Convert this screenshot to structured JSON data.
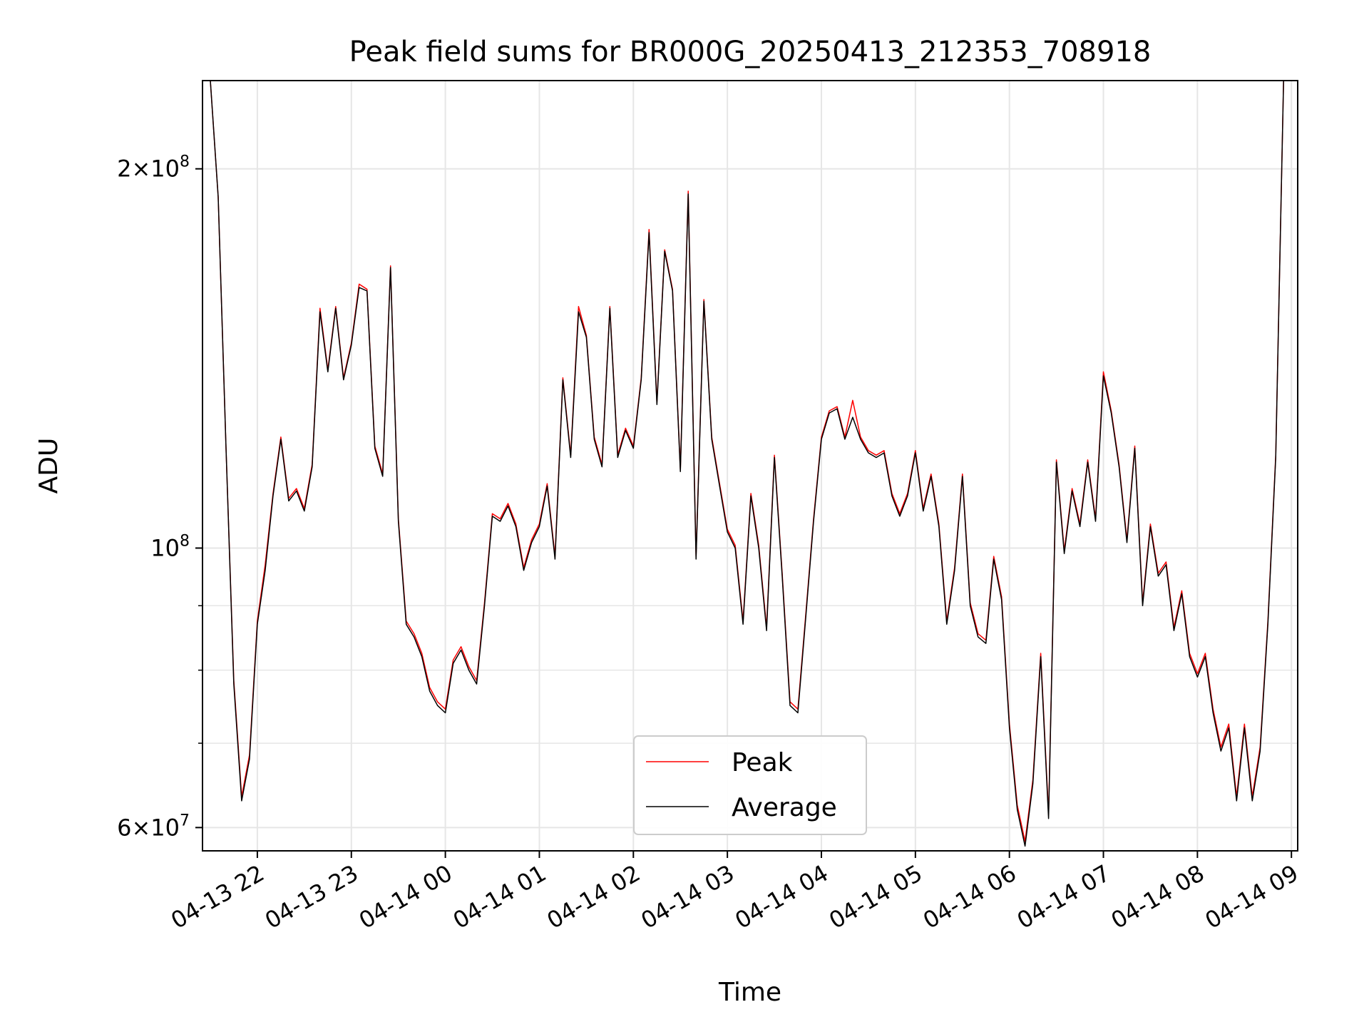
{
  "chart_data": {
    "type": "line",
    "title": "Peak field sums for BR000G_20250413_212353_708918",
    "xlabel": "Time",
    "ylabel": "ADU",
    "yscale": "log",
    "grid": true,
    "legend_placement": "lower center",
    "xlim": [
      "2025-04-13 21:25",
      "2025-04-14 09:04"
    ],
    "ylim": [
      57500000,
      235000000
    ],
    "x_ticks": [
      "04-13 22",
      "04-13 23",
      "04-14 00",
      "04-14 01",
      "04-14 02",
      "04-14 03",
      "04-14 04",
      "04-14 05",
      "04-14 06",
      "04-14 07",
      "04-14 08",
      "04-14 09"
    ],
    "x_tick_times": [
      "2025-04-13 22:00",
      "2025-04-13 23:00",
      "2025-04-14 00:00",
      "2025-04-14 01:00",
      "2025-04-14 02:00",
      "2025-04-14 03:00",
      "2025-04-14 04:00",
      "2025-04-14 05:00",
      "2025-04-14 06:00",
      "2025-04-14 07:00",
      "2025-04-14 08:00",
      "2025-04-14 09:00"
    ],
    "y_major_ticks": [
      {
        "value": 60000000,
        "mantissa": "6",
        "exponent": "7"
      },
      {
        "value": 100000000,
        "mantissa": "",
        "exponent": "8"
      },
      {
        "value": 200000000,
        "mantissa": "2",
        "exponent": "8"
      }
    ],
    "y_minor_ticks": [
      70000000,
      80000000,
      90000000
    ],
    "series": [
      {
        "name": "Peak",
        "color": "#ff0000"
      },
      {
        "name": "Average",
        "color": "#000000"
      }
    ],
    "x": [
      "2025-04-13 21:25",
      "2025-04-13 21:30",
      "2025-04-13 21:35",
      "2025-04-13 21:40",
      "2025-04-13 21:45",
      "2025-04-13 21:50",
      "2025-04-13 21:55",
      "2025-04-13 22:00",
      "2025-04-13 22:05",
      "2025-04-13 22:10",
      "2025-04-13 22:15",
      "2025-04-13 22:20",
      "2025-04-13 22:25",
      "2025-04-13 22:30",
      "2025-04-13 22:35",
      "2025-04-13 22:40",
      "2025-04-13 22:45",
      "2025-04-13 22:50",
      "2025-04-13 22:55",
      "2025-04-13 23:00",
      "2025-04-13 23:05",
      "2025-04-13 23:10",
      "2025-04-13 23:15",
      "2025-04-13 23:20",
      "2025-04-13 23:25",
      "2025-04-13 23:30",
      "2025-04-13 23:35",
      "2025-04-13 23:40",
      "2025-04-13 23:45",
      "2025-04-13 23:50",
      "2025-04-13 23:55",
      "2025-04-14 00:00",
      "2025-04-14 00:05",
      "2025-04-14 00:10",
      "2025-04-14 00:15",
      "2025-04-14 00:20",
      "2025-04-14 00:25",
      "2025-04-14 00:30",
      "2025-04-14 00:35",
      "2025-04-14 00:40",
      "2025-04-14 00:45",
      "2025-04-14 00:50",
      "2025-04-14 00:55",
      "2025-04-14 01:00",
      "2025-04-14 01:05",
      "2025-04-14 01:10",
      "2025-04-14 01:15",
      "2025-04-14 01:20",
      "2025-04-14 01:25",
      "2025-04-14 01:30",
      "2025-04-14 01:35",
      "2025-04-14 01:40",
      "2025-04-14 01:45",
      "2025-04-14 01:50",
      "2025-04-14 01:55",
      "2025-04-14 02:00",
      "2025-04-14 02:05",
      "2025-04-14 02:10",
      "2025-04-14 02:15",
      "2025-04-14 02:20",
      "2025-04-14 02:25",
      "2025-04-14 02:30",
      "2025-04-14 02:35",
      "2025-04-14 02:40",
      "2025-04-14 02:45",
      "2025-04-14 02:50",
      "2025-04-14 02:55",
      "2025-04-14 03:00",
      "2025-04-14 03:05",
      "2025-04-14 03:10",
      "2025-04-14 03:15",
      "2025-04-14 03:20",
      "2025-04-14 03:25",
      "2025-04-14 03:30",
      "2025-04-14 03:35",
      "2025-04-14 03:40",
      "2025-04-14 03:45",
      "2025-04-14 03:50",
      "2025-04-14 03:55",
      "2025-04-14 04:00",
      "2025-04-14 04:05",
      "2025-04-14 04:10",
      "2025-04-14 04:15",
      "2025-04-14 04:20",
      "2025-04-14 04:25",
      "2025-04-14 04:30",
      "2025-04-14 04:35",
      "2025-04-14 04:40",
      "2025-04-14 04:45",
      "2025-04-14 04:50",
      "2025-04-14 04:55",
      "2025-04-14 05:00",
      "2025-04-14 05:05",
      "2025-04-14 05:10",
      "2025-04-14 05:15",
      "2025-04-14 05:20",
      "2025-04-14 05:25",
      "2025-04-14 05:30",
      "2025-04-14 05:35",
      "2025-04-14 05:40",
      "2025-04-14 05:45",
      "2025-04-14 05:50",
      "2025-04-14 05:55",
      "2025-04-14 06:00",
      "2025-04-14 06:05",
      "2025-04-14 06:10",
      "2025-04-14 06:15",
      "2025-04-14 06:20",
      "2025-04-14 06:25",
      "2025-04-14 06:30",
      "2025-04-14 06:35",
      "2025-04-14 06:40",
      "2025-04-14 06:45",
      "2025-04-14 06:50",
      "2025-04-14 06:55",
      "2025-04-14 07:00",
      "2025-04-14 07:05",
      "2025-04-14 07:10",
      "2025-04-14 07:15",
      "2025-04-14 07:20",
      "2025-04-14 07:25",
      "2025-04-14 07:30",
      "2025-04-14 07:35",
      "2025-04-14 07:40",
      "2025-04-14 07:45",
      "2025-04-14 07:50",
      "2025-04-14 07:55",
      "2025-04-14 08:00",
      "2025-04-14 08:05",
      "2025-04-14 08:10",
      "2025-04-14 08:15",
      "2025-04-14 08:20",
      "2025-04-14 08:25",
      "2025-04-14 08:30",
      "2025-04-14 08:35",
      "2025-04-14 08:40",
      "2025-04-14 08:45",
      "2025-04-14 08:50",
      "2025-04-14 08:55",
      "2025-04-14 09:00"
    ],
    "average_values": [
      235000000,
      235000000,
      190000000,
      120000000,
      78000000,
      63000000,
      68000000,
      87000000,
      96000000,
      110000000,
      122000000,
      109000000,
      111000000,
      107000000,
      116000000,
      154000000,
      138000000,
      155000000,
      136000000,
      145000000,
      161000000,
      160000000,
      120000000,
      114000000,
      167000000,
      105000000,
      87000000,
      85000000,
      82000000,
      77000000,
      75000000,
      74000000,
      81000000,
      83000000,
      80000000,
      78000000,
      90000000,
      106000000,
      105000000,
      108000000,
      104000000,
      96000000,
      101000000,
      104000000,
      112000000,
      98000000,
      136000000,
      118000000,
      154000000,
      147000000,
      122000000,
      116000000,
      155000000,
      118000000,
      124000000,
      120000000,
      136000000,
      178000000,
      130000000,
      172000000,
      160000000,
      115000000,
      191000000,
      98000000,
      157000000,
      122000000,
      112000000,
      103000000,
      100000000,
      87000000,
      110000000,
      100000000,
      86000000,
      118000000,
      95000000,
      75000000,
      74000000,
      88000000,
      105000000,
      122000000,
      128000000,
      129000000,
      122000000,
      127000000,
      122000000,
      119000000,
      118000000,
      119000000,
      110000000,
      106000000,
      110000000,
      119000000,
      107000000,
      114000000,
      104000000,
      87000000,
      96000000,
      114000000,
      90000000,
      85000000,
      84000000,
      98000000,
      91000000,
      72000000,
      62000000,
      58000000,
      65000000,
      82000000,
      61000000,
      117000000,
      99000000,
      111000000,
      104000000,
      117000000,
      105000000,
      137000000,
      128000000,
      116000000,
      101000000,
      120000000,
      90000000,
      104000000,
      95000000,
      97000000,
      86000000,
      92000000,
      82000000,
      79000000,
      82000000,
      74000000,
      69000000,
      72000000,
      63000000,
      72000000,
      63000000,
      69000000,
      87000000,
      118000000,
      235000000
    ],
    "peak_values": [
      235000000,
      235000000,
      190000000,
      120000000,
      78500000,
      63500000,
      68500000,
      87500000,
      97000000,
      110500000,
      122500000,
      109500000,
      111500000,
      107500000,
      116500000,
      155000000,
      138500000,
      155500000,
      136500000,
      145500000,
      162000000,
      160500000,
      120500000,
      114500000,
      167500000,
      105500000,
      87500000,
      85500000,
      82500000,
      77500000,
      75500000,
      74500000,
      81500000,
      83500000,
      80500000,
      78500000,
      90500000,
      106500000,
      105500000,
      108500000,
      104500000,
      96500000,
      101500000,
      104500000,
      112500000,
      98500000,
      136500000,
      118500000,
      155500000,
      147500000,
      122500000,
      116500000,
      155500000,
      118500000,
      124500000,
      120500000,
      136500000,
      179000000,
      130500000,
      172500000,
      160500000,
      115500000,
      192000000,
      98500000,
      157500000,
      122500000,
      112500000,
      103500000,
      100500000,
      87500000,
      110500000,
      100500000,
      86500000,
      118500000,
      95500000,
      75500000,
      74500000,
      88500000,
      105500000,
      122500000,
      128500000,
      129500000,
      122500000,
      131000000,
      122500000,
      119500000,
      118500000,
      119500000,
      110500000,
      106500000,
      110500000,
      119500000,
      107500000,
      114500000,
      104500000,
      87500000,
      96500000,
      114500000,
      90500000,
      85500000,
      84500000,
      98500000,
      91500000,
      72500000,
      62500000,
      58500000,
      65500000,
      82500000,
      61500000,
      117500000,
      99500000,
      111500000,
      104500000,
      117500000,
      105500000,
      138000000,
      128500000,
      116500000,
      101500000,
      120500000,
      90500000,
      104500000,
      95500000,
      97500000,
      86500000,
      92500000,
      82500000,
      79500000,
      82500000,
      74500000,
      69500000,
      72500000,
      63500000,
      72500000,
      63500000,
      69500000,
      87500000,
      118500000,
      235000000
    ]
  }
}
